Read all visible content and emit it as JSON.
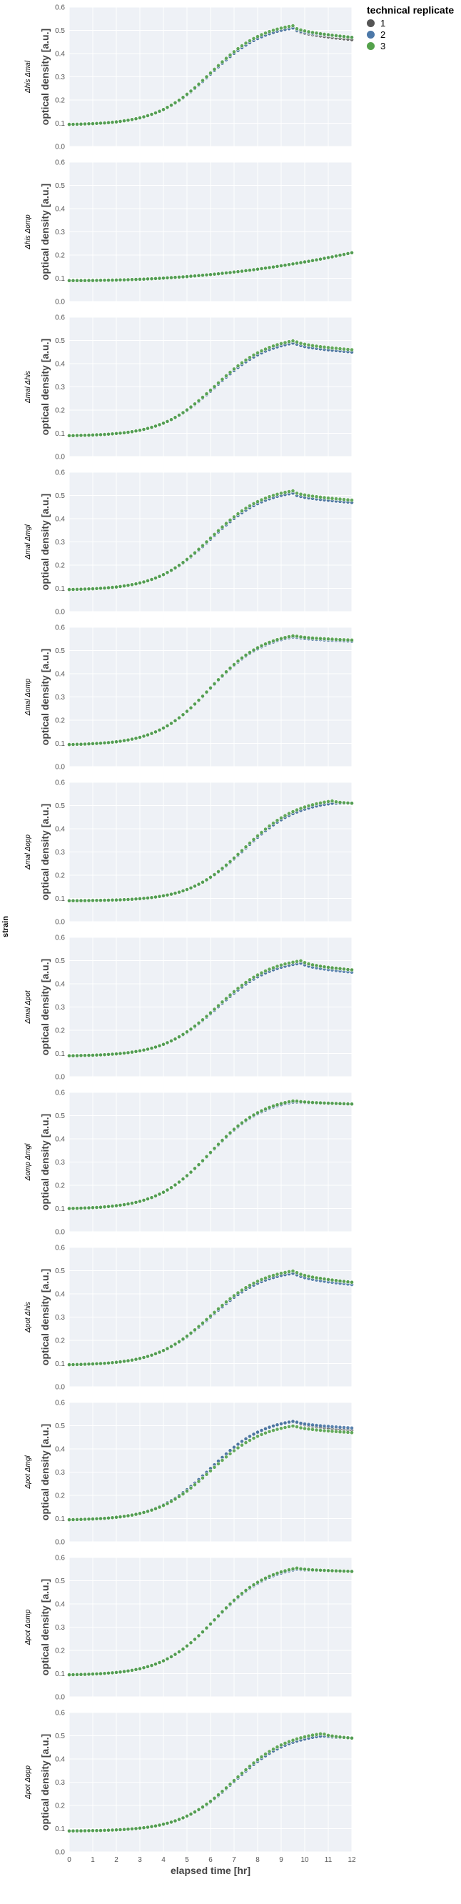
{
  "legend": {
    "title": "technical replicate",
    "items": [
      {
        "label": "1",
        "color": "#555555"
      },
      {
        "label": "2",
        "color": "#4c78a8"
      },
      {
        "label": "3",
        "color": "#54a24b"
      }
    ]
  },
  "facet_label": "strain",
  "chart_data": {
    "type": "scatter",
    "facet_by": "strain",
    "panels": [
      {
        "strain": "Δhis Δmal",
        "xlabel": "",
        "ylabel": "optical density [a.u.]",
        "xlim": [
          0,
          12
        ],
        "ylim": [
          0.0,
          0.6
        ],
        "yticks": [
          "0.0",
          "0.1",
          "0.2",
          "0.3",
          "0.4",
          "0.5",
          "0.6"
        ],
        "replicates": [
          {
            "name": "1",
            "peak_x": 9.5,
            "peak_y": 0.51,
            "end_y": 0.46
          },
          {
            "name": "2",
            "peak_x": 9.5,
            "peak_y": 0.51,
            "end_y": 0.47
          },
          {
            "name": "3",
            "peak_x": 9.5,
            "peak_y": 0.52,
            "end_y": 0.47
          }
        ],
        "start_y": 0.095,
        "mid_x": 6.0
      },
      {
        "strain": "Δhis Δomp",
        "xlabel": "",
        "ylabel": "optical density [a.u.]",
        "xlim": [
          0,
          12
        ],
        "ylim": [
          0.0,
          0.6
        ],
        "yticks": [
          "0.0",
          "0.1",
          "0.2",
          "0.3",
          "0.4",
          "0.5",
          "0.6"
        ],
        "linear": true,
        "start_y": 0.09,
        "end_y": 0.21
      },
      {
        "strain": "Δmal Δhis",
        "xlabel": "",
        "ylabel": "optical density [a.u.]",
        "xlim": [
          0,
          12
        ],
        "ylim": [
          0.0,
          0.6
        ],
        "yticks": [
          "0.0",
          "0.1",
          "0.2",
          "0.3",
          "0.4",
          "0.5",
          "0.6"
        ],
        "replicates": [
          {
            "name": "1",
            "peak_x": 9.6,
            "peak_y": 0.49,
            "end_y": 0.45
          },
          {
            "name": "2",
            "peak_x": 9.6,
            "peak_y": 0.49,
            "end_y": 0.45
          },
          {
            "name": "3",
            "peak_x": 9.6,
            "peak_y": 0.5,
            "end_y": 0.46
          }
        ],
        "start_y": 0.09,
        "mid_x": 6.2
      },
      {
        "strain": "Δmal Δmgl",
        "xlabel": "",
        "ylabel": "optical density [a.u.]",
        "xlim": [
          0,
          12
        ],
        "ylim": [
          0.0,
          0.6
        ],
        "yticks": [
          "0.0",
          "0.1",
          "0.2",
          "0.3",
          "0.4",
          "0.5",
          "0.6"
        ],
        "replicates": [
          {
            "name": "1",
            "peak_x": 9.5,
            "peak_y": 0.51,
            "end_y": 0.47
          },
          {
            "name": "2",
            "peak_x": 9.5,
            "peak_y": 0.51,
            "end_y": 0.47
          },
          {
            "name": "3",
            "peak_x": 9.5,
            "peak_y": 0.52,
            "end_y": 0.48
          }
        ],
        "start_y": 0.095,
        "mid_x": 6.0
      },
      {
        "strain": "Δmal Δomp",
        "xlabel": "",
        "ylabel": "optical density [a.u.]",
        "xlim": [
          0,
          12
        ],
        "ylim": [
          0.0,
          0.6
        ],
        "yticks": [
          "0.0",
          "0.1",
          "0.2",
          "0.3",
          "0.4",
          "0.5",
          "0.6"
        ],
        "replicates": [
          {
            "name": "1",
            "peak_x": 9.6,
            "peak_y": 0.56,
            "end_y": 0.54
          },
          {
            "name": "2",
            "peak_x": 9.6,
            "peak_y": 0.56,
            "end_y": 0.54
          },
          {
            "name": "3",
            "peak_x": 9.6,
            "peak_y": 0.565,
            "end_y": 0.545
          }
        ],
        "start_y": 0.095,
        "mid_x": 6.0
      },
      {
        "strain": "Δmal Δopp",
        "xlabel": "",
        "ylabel": "optical density [a.u.]",
        "xlim": [
          0,
          12
        ],
        "ylim": [
          0.0,
          0.6
        ],
        "yticks": [
          "0.0",
          "0.1",
          "0.2",
          "0.3",
          "0.4",
          "0.5",
          "0.6"
        ],
        "replicates": [
          {
            "name": "1",
            "peak_x": 11.2,
            "peak_y": 0.51,
            "end_y": 0.51
          },
          {
            "name": "2",
            "peak_x": 11.2,
            "peak_y": 0.51,
            "end_y": 0.51
          },
          {
            "name": "3",
            "peak_x": 11.2,
            "peak_y": 0.52,
            "end_y": 0.51
          }
        ],
        "start_y": 0.09,
        "mid_x": 7.4
      },
      {
        "strain": "Δmal Δpot",
        "xlabel": "",
        "ylabel": "optical density [a.u.]",
        "xlim": [
          0,
          12
        ],
        "ylim": [
          0.0,
          0.6
        ],
        "yticks": [
          "0.0",
          "0.1",
          "0.2",
          "0.3",
          "0.4",
          "0.5",
          "0.6"
        ],
        "replicates": [
          {
            "name": "1",
            "peak_x": 9.9,
            "peak_y": 0.49,
            "end_y": 0.46
          },
          {
            "name": "2",
            "peak_x": 9.9,
            "peak_y": 0.49,
            "end_y": 0.45
          },
          {
            "name": "3",
            "peak_x": 9.9,
            "peak_y": 0.5,
            "end_y": 0.46
          }
        ],
        "start_y": 0.09,
        "mid_x": 6.3
      },
      {
        "strain": "Δomp Δmgl",
        "xlabel": "",
        "ylabel": "optical density [a.u.]",
        "xlim": [
          0,
          12
        ],
        "ylim": [
          0.0,
          0.6
        ],
        "yticks": [
          "0.0",
          "0.1",
          "0.2",
          "0.3",
          "0.4",
          "0.5",
          "0.6"
        ],
        "replicates": [
          {
            "name": "1",
            "peak_x": 9.6,
            "peak_y": 0.56,
            "end_y": 0.55
          },
          {
            "name": "2",
            "peak_x": 9.6,
            "peak_y": 0.56,
            "end_y": 0.55
          },
          {
            "name": "3",
            "peak_x": 9.6,
            "peak_y": 0.565,
            "end_y": 0.55
          }
        ],
        "start_y": 0.1,
        "mid_x": 6.0
      },
      {
        "strain": "Δpot Δhis",
        "xlabel": "",
        "ylabel": "optical density [a.u.]",
        "xlim": [
          0,
          12
        ],
        "ylim": [
          0.0,
          0.6
        ],
        "yticks": [
          "0.0",
          "0.1",
          "0.2",
          "0.3",
          "0.4",
          "0.5",
          "0.6"
        ],
        "replicates": [
          {
            "name": "1",
            "peak_x": 9.6,
            "peak_y": 0.49,
            "end_y": 0.45
          },
          {
            "name": "2",
            "peak_x": 9.6,
            "peak_y": 0.49,
            "end_y": 0.44
          },
          {
            "name": "3",
            "peak_x": 9.6,
            "peak_y": 0.5,
            "end_y": 0.45
          }
        ],
        "start_y": 0.095,
        "mid_x": 6.0
      },
      {
        "strain": "Δpot Δmgl",
        "xlabel": "",
        "ylabel": "optical density [a.u.]",
        "xlim": [
          0,
          12
        ],
        "ylim": [
          0.0,
          0.6
        ],
        "yticks": [
          "0.0",
          "0.1",
          "0.2",
          "0.3",
          "0.4",
          "0.5",
          "0.6"
        ],
        "replicates": [
          {
            "name": "1",
            "peak_x": 9.6,
            "peak_y": 0.52,
            "end_y": 0.48
          },
          {
            "name": "2",
            "peak_x": 9.6,
            "peak_y": 0.52,
            "end_y": 0.49
          },
          {
            "name": "3",
            "peak_x": 9.6,
            "peak_y": 0.5,
            "end_y": 0.47
          }
        ],
        "start_y": 0.095,
        "mid_x": 6.0
      },
      {
        "strain": "Δpot Δomp",
        "xlabel": "",
        "ylabel": "optical density [a.u.]",
        "xlim": [
          0,
          12
        ],
        "ylim": [
          0.0,
          0.6
        ],
        "yticks": [
          "0.0",
          "0.1",
          "0.2",
          "0.3",
          "0.4",
          "0.5",
          "0.6"
        ],
        "replicates": [
          {
            "name": "1",
            "peak_x": 9.7,
            "peak_y": 0.55,
            "end_y": 0.54
          },
          {
            "name": "2",
            "peak_x": 9.7,
            "peak_y": 0.55,
            "end_y": 0.54
          },
          {
            "name": "3",
            "peak_x": 9.7,
            "peak_y": 0.555,
            "end_y": 0.54
          }
        ],
        "start_y": 0.095,
        "mid_x": 6.2
      },
      {
        "strain": "Δpot Δopp",
        "xlabel": "elapsed time [hr]",
        "ylabel": "optical density [a.u.]",
        "xlim": [
          0,
          12
        ],
        "ylim": [
          0.0,
          0.6
        ],
        "yticks": [
          "0.0",
          "0.1",
          "0.2",
          "0.3",
          "0.4",
          "0.5",
          "0.6"
        ],
        "xticks": [
          "0",
          "1",
          "2",
          "3",
          "4",
          "5",
          "6",
          "7",
          "8",
          "9",
          "10",
          "11",
          "12"
        ],
        "replicates": [
          {
            "name": "1",
            "peak_x": 10.8,
            "peak_y": 0.5,
            "end_y": 0.49
          },
          {
            "name": "2",
            "peak_x": 10.8,
            "peak_y": 0.5,
            "end_y": 0.49
          },
          {
            "name": "3",
            "peak_x": 10.8,
            "peak_y": 0.51,
            "end_y": 0.49
          }
        ],
        "start_y": 0.09,
        "mid_x": 7.0
      }
    ]
  }
}
